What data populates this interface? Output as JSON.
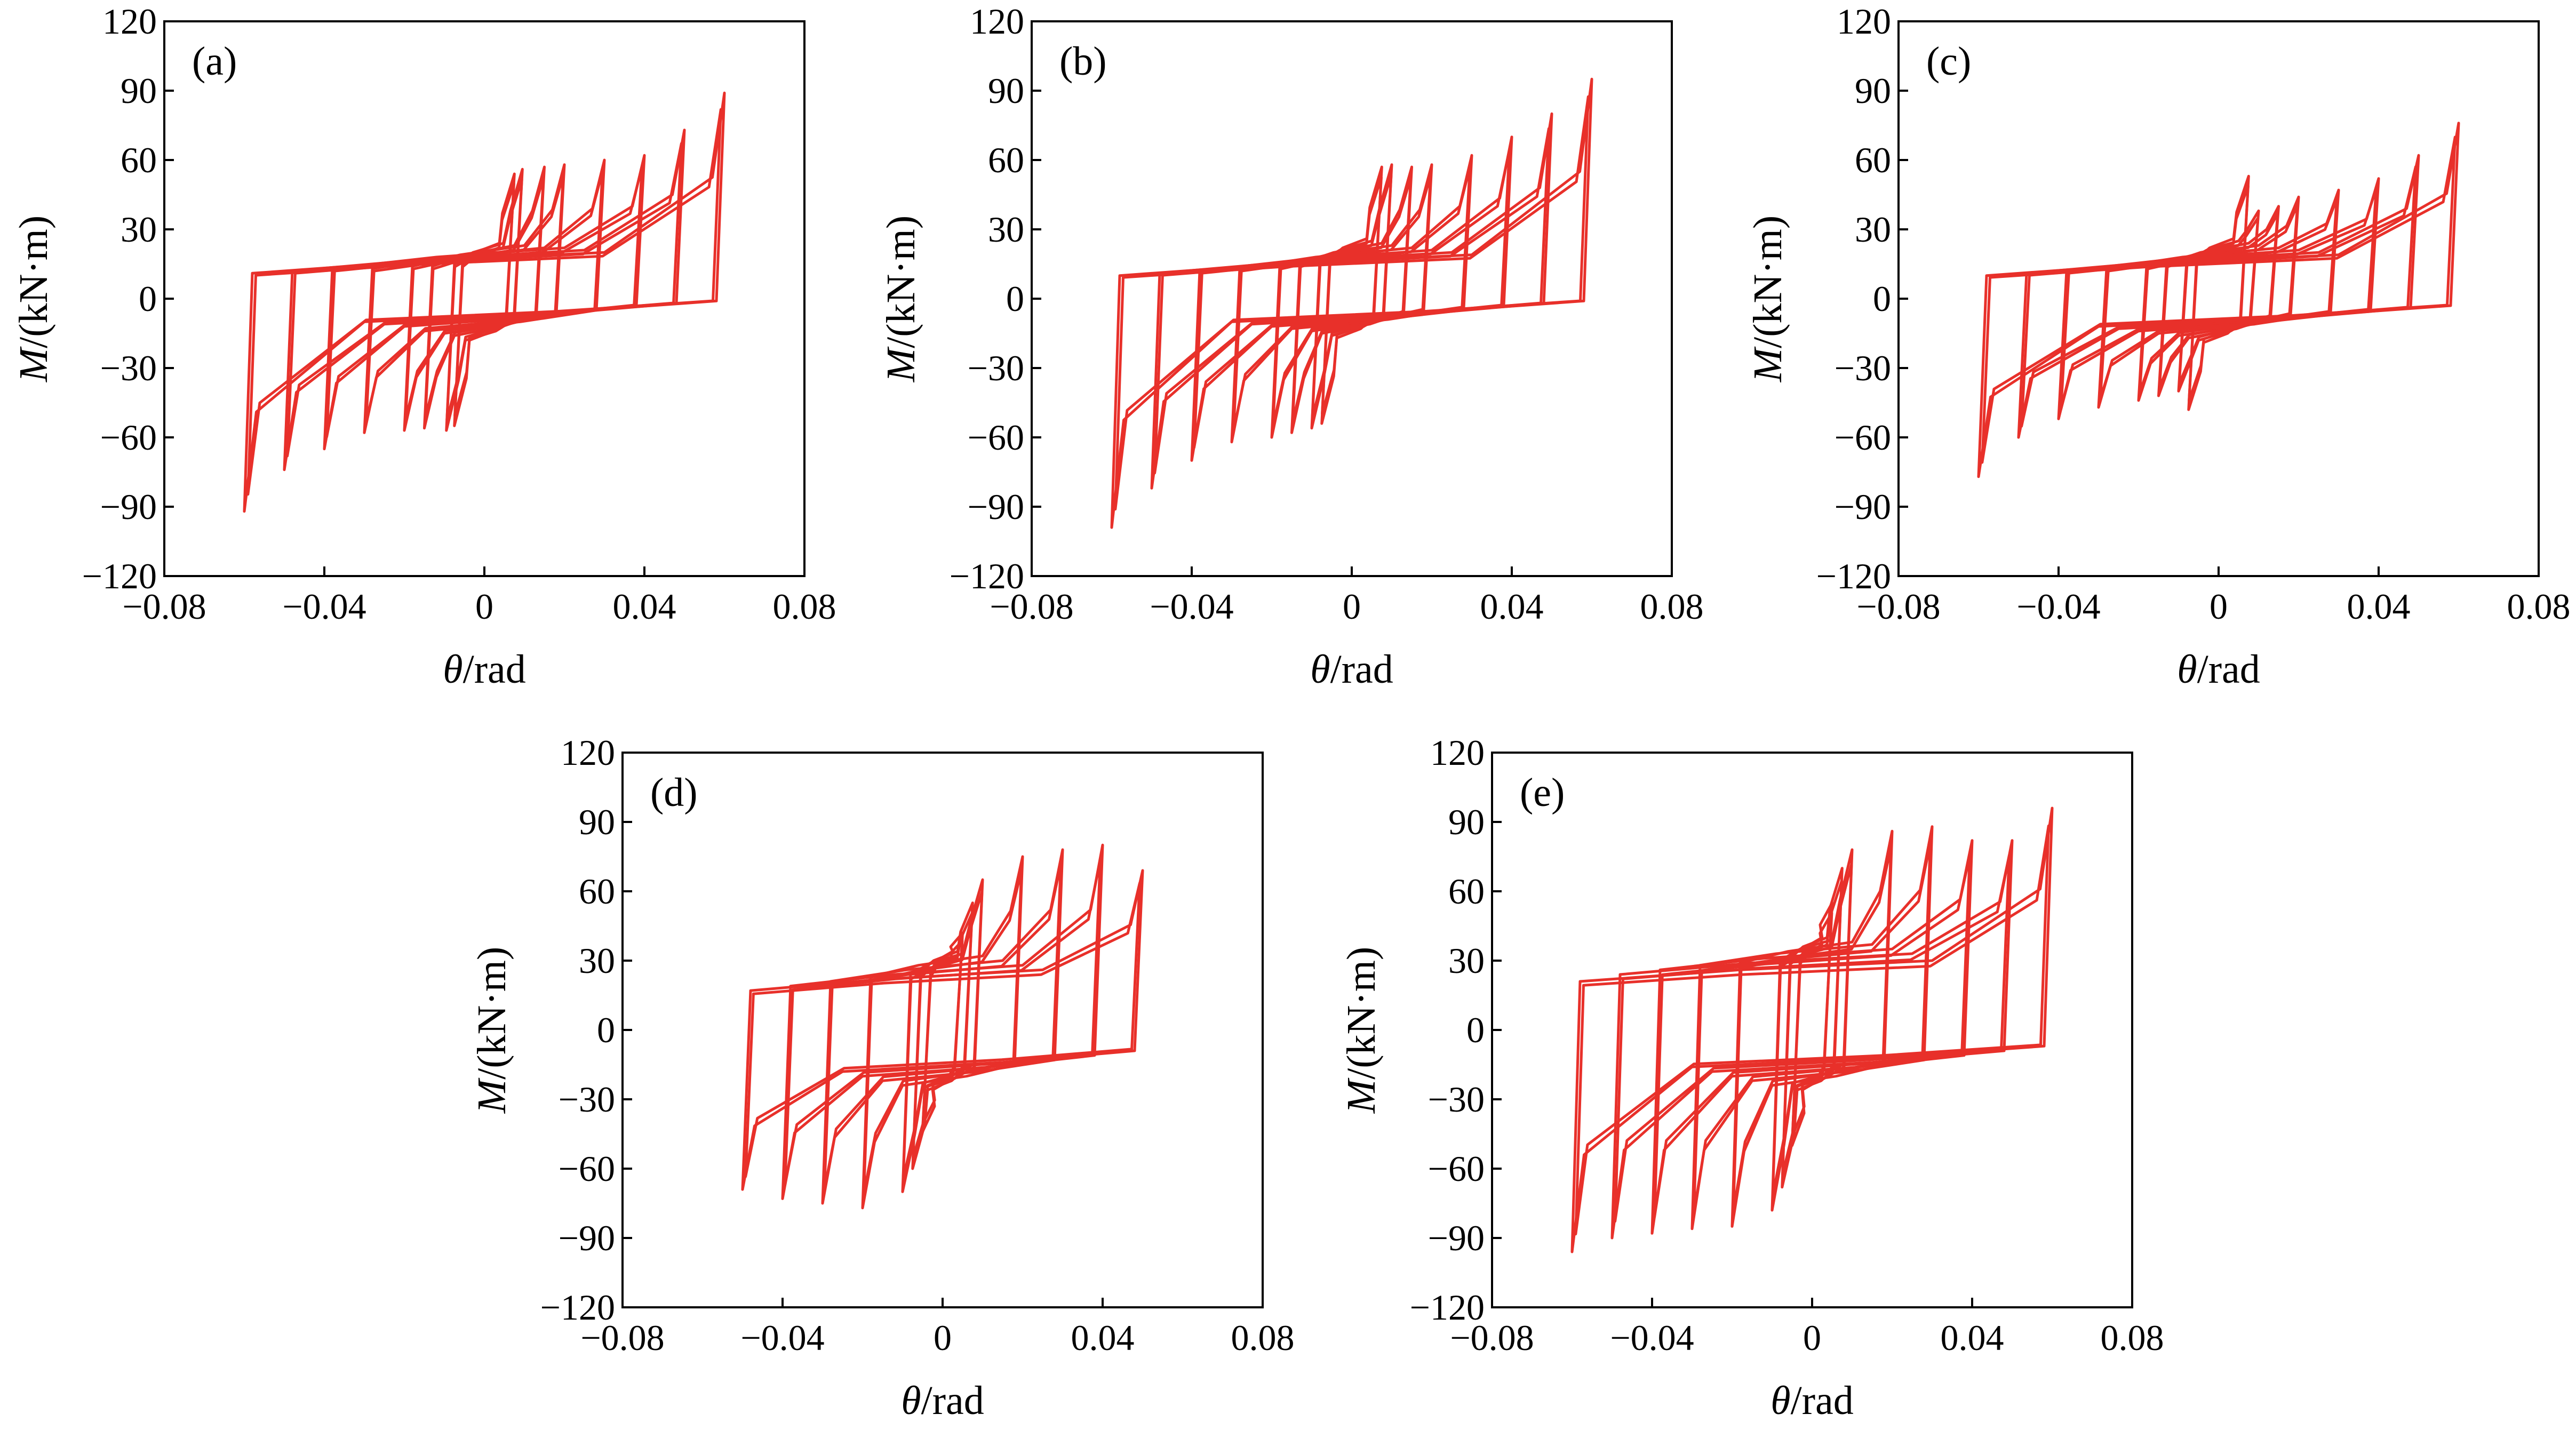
{
  "figure": {
    "colors": {
      "curve": "#e8302a",
      "axis": "#000000"
    }
  },
  "chart_data": [
    {
      "panel": "(a)",
      "type": "line",
      "xlabel_var": "θ",
      "xlabel_unit": "/rad",
      "ylabel_var": "M",
      "ylabel_unit": "/(kN·m)",
      "xlim": [
        -0.08,
        0.08
      ],
      "ylim": [
        -120,
        120
      ],
      "xticks": [
        -0.08,
        -0.04,
        0,
        0.04,
        0.08
      ],
      "xtick_labels": [
        "−0.08",
        "−0.04",
        "0",
        "0.04",
        "0.08"
      ],
      "yticks": [
        -120,
        -90,
        -60,
        -30,
        0,
        30,
        60,
        90,
        120
      ],
      "ytick_labels": [
        "−120",
        "−90",
        "−60",
        "−30",
        "0",
        "30",
        "60",
        "90",
        "120"
      ],
      "cycles": [
        {
          "amp": 0.0075,
          "pos_peak": 54,
          "neg_peak": -55,
          "pos_plat": 20,
          "neg_plat": -14
        },
        {
          "amp": 0.0095,
          "pos_peak": 56,
          "neg_peak": -57,
          "pos_plat": 20,
          "neg_plat": -14
        },
        {
          "amp": 0.015,
          "pos_peak": 57,
          "neg_peak": -56,
          "pos_plat": 19,
          "neg_plat": -12
        },
        {
          "amp": 0.02,
          "pos_peak": 58,
          "neg_peak": -57,
          "pos_plat": 19,
          "neg_plat": -11
        },
        {
          "amp": 0.03,
          "pos_peak": 60,
          "neg_peak": -58,
          "pos_plat": 18,
          "neg_plat": -10
        },
        {
          "amp": 0.04,
          "pos_peak": 62,
          "neg_peak": -65,
          "pos_plat": 18,
          "neg_plat": -8
        },
        {
          "amp": 0.05,
          "pos_peak": 73,
          "neg_peak": -74,
          "pos_plat": 17,
          "neg_plat": -7
        },
        {
          "amp": 0.06,
          "pos_peak": 89,
          "neg_peak": -92,
          "pos_plat": 16,
          "neg_plat": -6
        }
      ]
    },
    {
      "panel": "(b)",
      "type": "line",
      "xlabel_var": "θ",
      "xlabel_unit": "/rad",
      "ylabel_var": "M",
      "ylabel_unit": "/(kN·m)",
      "xlim": [
        -0.08,
        0.08
      ],
      "ylim": [
        -120,
        120
      ],
      "xticks": [
        -0.08,
        -0.04,
        0,
        0.04,
        0.08
      ],
      "xtick_labels": [
        "−0.08",
        "−0.04",
        "0",
        "0.04",
        "0.08"
      ],
      "yticks": [
        -120,
        -90,
        -60,
        -30,
        0,
        30,
        60,
        90,
        120
      ],
      "ytick_labels": [
        "−120",
        "−90",
        "−60",
        "−30",
        "0",
        "30",
        "60",
        "90",
        "120"
      ],
      "cycles": [
        {
          "amp": 0.0075,
          "pos_peak": 57,
          "neg_peak": -54,
          "pos_plat": 22,
          "neg_plat": -13
        },
        {
          "amp": 0.01,
          "pos_peak": 58,
          "neg_peak": -56,
          "pos_plat": 21,
          "neg_plat": -12
        },
        {
          "amp": 0.015,
          "pos_peak": 57,
          "neg_peak": -58,
          "pos_plat": 20,
          "neg_plat": -11
        },
        {
          "amp": 0.02,
          "pos_peak": 58,
          "neg_peak": -60,
          "pos_plat": 19,
          "neg_plat": -10
        },
        {
          "amp": 0.03,
          "pos_peak": 62,
          "neg_peak": -62,
          "pos_plat": 18,
          "neg_plat": -9
        },
        {
          "amp": 0.04,
          "pos_peak": 70,
          "neg_peak": -70,
          "pos_plat": 17,
          "neg_plat": -8
        },
        {
          "amp": 0.05,
          "pos_peak": 80,
          "neg_peak": -82,
          "pos_plat": 16,
          "neg_plat": -7
        },
        {
          "amp": 0.06,
          "pos_peak": 95,
          "neg_peak": -99,
          "pos_plat": 15,
          "neg_plat": -6
        }
      ]
    },
    {
      "panel": "(c)",
      "type": "line",
      "xlabel_var": "θ",
      "xlabel_unit": "/rad",
      "ylabel_var": "M",
      "ylabel_unit": "/(kN·m)",
      "xlim": [
        -0.08,
        0.08
      ],
      "ylim": [
        -120,
        120
      ],
      "xticks": [
        -0.08,
        -0.04,
        0,
        0.04,
        0.08
      ],
      "xtick_labels": [
        "−0.08",
        "−0.04",
        "0",
        "0.04",
        "0.08"
      ],
      "yticks": [
        -120,
        -90,
        -60,
        -30,
        0,
        30,
        60,
        90,
        120
      ],
      "ytick_labels": [
        "−120",
        "−90",
        "−60",
        "−30",
        "0",
        "30",
        "60",
        "90",
        "120"
      ],
      "cycles": [
        {
          "amp": 0.0075,
          "pos_peak": 53,
          "neg_peak": -48,
          "pos_plat": 22,
          "neg_plat": -15
        },
        {
          "amp": 0.01,
          "pos_peak": 38,
          "neg_peak": -40,
          "pos_plat": 21,
          "neg_plat": -14
        },
        {
          "amp": 0.015,
          "pos_peak": 40,
          "neg_peak": -42,
          "pos_plat": 20,
          "neg_plat": -13
        },
        {
          "amp": 0.02,
          "pos_peak": 44,
          "neg_peak": -44,
          "pos_plat": 19,
          "neg_plat": -12
        },
        {
          "amp": 0.03,
          "pos_peak": 47,
          "neg_peak": -47,
          "pos_plat": 18,
          "neg_plat": -11
        },
        {
          "amp": 0.04,
          "pos_peak": 52,
          "neg_peak": -52,
          "pos_plat": 17,
          "neg_plat": -10
        },
        {
          "amp": 0.05,
          "pos_peak": 62,
          "neg_peak": -60,
          "pos_plat": 16,
          "neg_plat": -9
        },
        {
          "amp": 0.06,
          "pos_peak": 76,
          "neg_peak": -77,
          "pos_plat": 15,
          "neg_plat": -8
        }
      ]
    },
    {
      "panel": "(d)",
      "type": "line",
      "xlabel_var": "θ",
      "xlabel_unit": "/rad",
      "ylabel_var": "M",
      "ylabel_unit": "/(kN·m)",
      "xlim": [
        -0.08,
        0.08
      ],
      "ylim": [
        -120,
        120
      ],
      "xticks": [
        -0.08,
        -0.04,
        0,
        0.04,
        0.08
      ],
      "xtick_labels": [
        "−0.08",
        "−0.04",
        "0",
        "0.04",
        "0.08"
      ],
      "yticks": [
        -120,
        -90,
        -60,
        -30,
        0,
        30,
        60,
        90,
        120
      ],
      "ytick_labels": [
        "−120",
        "−90",
        "−60",
        "−30",
        "0",
        "30",
        "60",
        "90",
        "120"
      ],
      "cycles": [
        {
          "amp": 0.005,
          "pos_peak": 42,
          "neg_peak": -44,
          "pos_plat": 30,
          "neg_plat": -22
        },
        {
          "amp": 0.0075,
          "pos_peak": 55,
          "neg_peak": -60,
          "pos_plat": 30,
          "neg_plat": -22
        },
        {
          "amp": 0.01,
          "pos_peak": 65,
          "neg_peak": -70,
          "pos_plat": 29,
          "neg_plat": -21
        },
        {
          "amp": 0.02,
          "pos_peak": 75,
          "neg_peak": -77,
          "pos_plat": 28,
          "neg_plat": -20
        },
        {
          "amp": 0.03,
          "pos_peak": 78,
          "neg_peak": -75,
          "pos_plat": 26,
          "neg_plat": -18
        },
        {
          "amp": 0.04,
          "pos_peak": 80,
          "neg_peak": -73,
          "pos_plat": 24,
          "neg_plat": -16
        },
        {
          "amp": 0.05,
          "pos_peak": 69,
          "neg_peak": -69,
          "pos_plat": 22,
          "neg_plat": -14
        }
      ]
    },
    {
      "panel": "(e)",
      "type": "line",
      "xlabel_var": "θ",
      "xlabel_unit": "/rad",
      "ylabel_var": "M",
      "ylabel_unit": "/(kN·m)",
      "xlim": [
        -0.08,
        0.08
      ],
      "ylim": [
        -120,
        120
      ],
      "xticks": [
        -0.08,
        -0.04,
        0,
        0.04,
        0.08
      ],
      "xtick_labels": [
        "−0.08",
        "−0.04",
        "0",
        "0.04",
        "0.08"
      ],
      "yticks": [
        -120,
        -90,
        -60,
        -30,
        0,
        30,
        60,
        90,
        120
      ],
      "ytick_labels": [
        "−120",
        "−90",
        "−60",
        "−30",
        "0",
        "30",
        "60",
        "90",
        "120"
      ],
      "cycles": [
        {
          "amp": 0.005,
          "pos_peak": 55,
          "neg_peak": -50,
          "pos_plat": 36,
          "neg_plat": -22
        },
        {
          "amp": 0.0075,
          "pos_peak": 70,
          "neg_peak": -68,
          "pos_plat": 36,
          "neg_plat": -22
        },
        {
          "amp": 0.01,
          "pos_peak": 78,
          "neg_peak": -78,
          "pos_plat": 35,
          "neg_plat": -21
        },
        {
          "amp": 0.02,
          "pos_peak": 86,
          "neg_peak": -85,
          "pos_plat": 34,
          "neg_plat": -20
        },
        {
          "amp": 0.03,
          "pos_peak": 88,
          "neg_peak": -86,
          "pos_plat": 33,
          "neg_plat": -18
        },
        {
          "amp": 0.04,
          "pos_peak": 82,
          "neg_peak": -88,
          "pos_plat": 31,
          "neg_plat": -16
        },
        {
          "amp": 0.05,
          "pos_peak": 82,
          "neg_peak": -90,
          "pos_plat": 29,
          "neg_plat": -14
        },
        {
          "amp": 0.06,
          "pos_peak": 96,
          "neg_peak": -96,
          "pos_plat": 26,
          "neg_plat": -12
        }
      ]
    }
  ]
}
